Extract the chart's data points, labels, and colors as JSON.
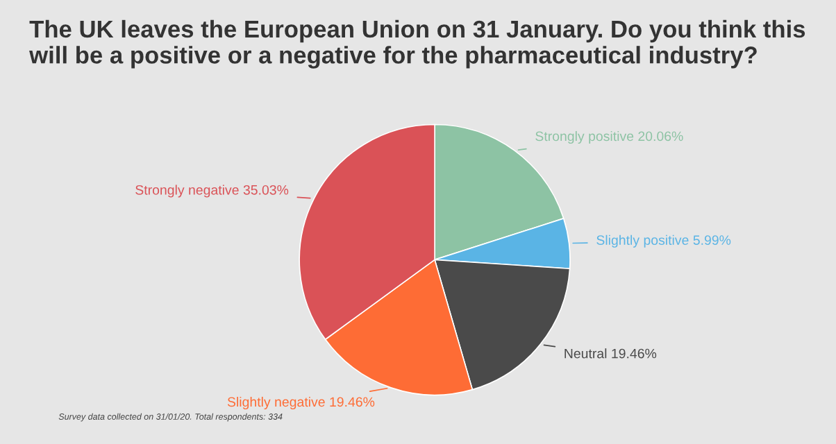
{
  "chart_data": {
    "type": "pie",
    "title": "The UK leaves the European Union on 31 January. Do you think this will be a positive or a negative for the pharmaceutical industry?",
    "categories": [
      "Strongly positive",
      "Slightly positive",
      "Neutral",
      "Slightly negative",
      "Strongly negative"
    ],
    "values": [
      20.06,
      5.99,
      19.46,
      19.46,
      35.03
    ],
    "value_labels": [
      "20.06%",
      "5.99%",
      "19.46%",
      "19.46%",
      "35.03%"
    ],
    "colors": [
      "#8dc3a4",
      "#5ab4e5",
      "#4a4a4a",
      "#fe6c35",
      "#da5257"
    ],
    "annotations": [
      "Survey data collected on 31/01/20. Total respondents: 334"
    ]
  }
}
